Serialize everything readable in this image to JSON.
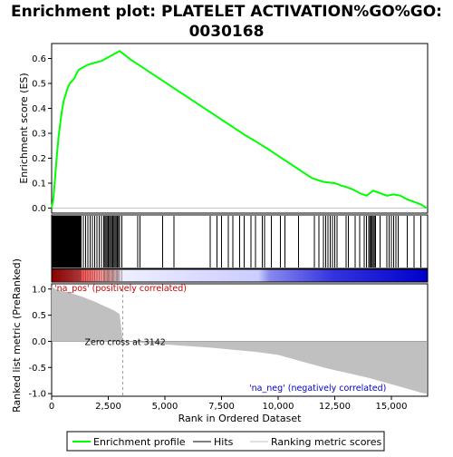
{
  "chart_data": {
    "type": "line",
    "title": "Enrichment plot: PLATELET ACTIVATION%GO%GO:\n0030168",
    "title_lines": [
      "Enrichment plot: PLATELET ACTIVATION%GO%GO:",
      "0030168"
    ],
    "xlabel": "Rank in Ordered Dataset",
    "ylabel_top": "Enrichment score (ES)",
    "ylabel_bottom": "Ranked list metric (PreRanked)",
    "xlim": [
      0,
      16600
    ],
    "x_ticks": [
      0,
      2500,
      5000,
      7500,
      10000,
      12500,
      15000
    ],
    "x_tick_labels": [
      "0",
      "2,500",
      "5,000",
      "7,500",
      "10,000",
      "12,500",
      "15,000"
    ],
    "es_ylim": [
      -0.02,
      0.66
    ],
    "es_ticks": [
      0.0,
      0.1,
      0.2,
      0.3,
      0.4,
      0.5,
      0.6
    ],
    "es_tick_labels": [
      "0.0",
      "0.1",
      "0.2",
      "0.3",
      "0.4",
      "0.5",
      "0.6"
    ],
    "metric_ylim": [
      -1.05,
      1.1
    ],
    "metric_ticks": [
      1.0,
      0.5,
      0.0,
      -0.5,
      -1.0
    ],
    "metric_tick_labels": [
      "1.0",
      "0.5",
      "0.0",
      "-0.5",
      "-1.0"
    ],
    "enrichment_profile": {
      "name": "Enrichment profile",
      "color": "#00ff00",
      "x": [
        0,
        80,
        150,
        220,
        300,
        380,
        450,
        530,
        600,
        700,
        800,
        900,
        1000,
        1100,
        1200,
        1300,
        1400,
        1500,
        1600,
        1700,
        1800,
        1900,
        2000,
        2100,
        2200,
        2300,
        2400,
        2500,
        2600,
        2700,
        2800,
        2900,
        3000,
        3142,
        3500,
        4000,
        4500,
        5000,
        5500,
        6000,
        6500,
        7000,
        7500,
        8000,
        8500,
        9000,
        9500,
        10000,
        10500,
        11000,
        11500,
        12000,
        12500,
        12800,
        13000,
        13300,
        13600,
        13900,
        14200,
        14500,
        14800,
        15100,
        15400,
        15700,
        16000,
        16300,
        16550
      ],
      "y": [
        0.0,
        0.04,
        0.12,
        0.2,
        0.28,
        0.34,
        0.39,
        0.43,
        0.45,
        0.48,
        0.5,
        0.51,
        0.52,
        0.54,
        0.555,
        0.56,
        0.565,
        0.57,
        0.575,
        0.578,
        0.58,
        0.583,
        0.585,
        0.588,
        0.59,
        0.595,
        0.6,
        0.605,
        0.61,
        0.615,
        0.62,
        0.625,
        0.63,
        0.62,
        0.595,
        0.565,
        0.535,
        0.505,
        0.475,
        0.445,
        0.415,
        0.385,
        0.355,
        0.325,
        0.295,
        0.268,
        0.24,
        0.21,
        0.18,
        0.15,
        0.12,
        0.105,
        0.1,
        0.09,
        0.085,
        0.075,
        0.06,
        0.05,
        0.07,
        0.06,
        0.05,
        0.055,
        0.05,
        0.035,
        0.025,
        0.015,
        0.0
      ]
    },
    "hits": {
      "name": "Hits",
      "color": "#000000",
      "positions": [
        20,
        60,
        100,
        140,
        180,
        220,
        260,
        300,
        340,
        380,
        420,
        460,
        500,
        540,
        580,
        620,
        660,
        700,
        740,
        780,
        820,
        860,
        900,
        940,
        980,
        1020,
        1060,
        1100,
        1140,
        1180,
        1220,
        1260,
        1300,
        1400,
        1500,
        1600,
        1700,
        1800,
        1900,
        2000,
        2100,
        2200,
        2300,
        2350,
        2400,
        2450,
        2500,
        2550,
        2600,
        2650,
        2700,
        2750,
        2800,
        2850,
        2900,
        2950,
        3000,
        3100,
        3800,
        3900,
        4900,
        5400,
        7000,
        7300,
        7500,
        7800,
        8000,
        8300,
        8500,
        8800,
        9000,
        9300,
        9400,
        9700,
        10100,
        10300,
        10900,
        11600,
        11800,
        12000,
        12100,
        12200,
        12300,
        12400,
        12500,
        12600,
        13000,
        13100,
        13400,
        13600,
        13800,
        13900,
        14000,
        14050,
        14100,
        14150,
        14200,
        14250,
        14300,
        14500,
        14800,
        14900,
        15000,
        15100,
        15200,
        15300,
        15700,
        16000,
        16300
      ]
    },
    "ranking_metric": {
      "name": "Ranking metric scores",
      "color": "#c0c0c0",
      "x": [
        0,
        150,
        400,
        700,
        1000,
        1300,
        1600,
        1900,
        2200,
        2500,
        2800,
        3000,
        3142,
        4000,
        5000,
        6000,
        7000,
        8000,
        9000,
        10000,
        10500,
        11000,
        11500,
        12000,
        12500,
        13000,
        13500,
        14000,
        14500,
        15000,
        15500,
        16000,
        16300,
        16550
      ],
      "y": [
        1.05,
        1.0,
        0.97,
        0.94,
        0.9,
        0.86,
        0.81,
        0.76,
        0.7,
        0.64,
        0.58,
        0.52,
        0.0,
        -0.03,
        -0.06,
        -0.09,
        -0.12,
        -0.16,
        -0.2,
        -0.26,
        -0.32,
        -0.38,
        -0.44,
        -0.5,
        -0.55,
        -0.6,
        -0.65,
        -0.7,
        -0.76,
        -0.82,
        -0.88,
        -0.94,
        -0.98,
        -1.0
      ]
    },
    "zero_cross": 3142,
    "annotations": {
      "pos_label": "'na_pos' (positively correlated)",
      "neg_label": "'na_neg' (negatively correlated)",
      "zero_cross_label": "Zero cross at 3142"
    },
    "legend": {
      "placement": "bottom",
      "items": [
        "Enrichment profile",
        "Hits",
        "Ranking metric scores"
      ]
    },
    "colors": {
      "es_line": "#00ff00",
      "hits": "#000000",
      "metric_fill": "#c0c0c0",
      "pos_text": "#cc0000",
      "neg_text": "#0000cc",
      "axis": "#000000",
      "grid_border": "#000000"
    },
    "rank_bar_gradient": [
      {
        "at": 0.0,
        "color": "#cc0000"
      },
      {
        "at": 0.08,
        "color": "#ff5555"
      },
      {
        "at": 0.16,
        "color": "#ffbbbb"
      },
      {
        "at": 0.19,
        "color": "#eeeeff"
      },
      {
        "at": 0.55,
        "color": "#ccccff"
      },
      {
        "at": 0.58,
        "color": "#8888ee"
      },
      {
        "at": 0.75,
        "color": "#3333dd"
      },
      {
        "at": 1.0,
        "color": "#0000cc"
      }
    ]
  }
}
